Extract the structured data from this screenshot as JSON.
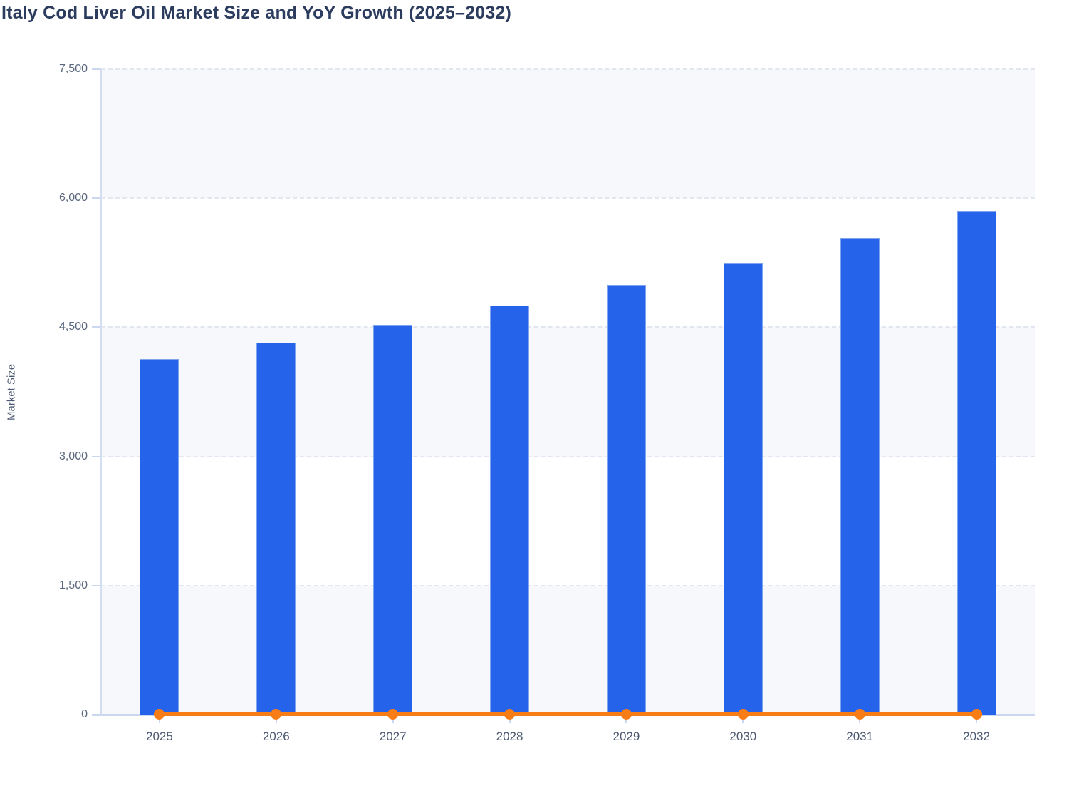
{
  "chart_data": {
    "type": "bar",
    "title": "Italy Cod Liver Oil Market Size and YoY Growth (2025–2032)",
    "xlabel": "",
    "ylabel": "Market Size",
    "categories": [
      "2025",
      "2026",
      "2027",
      "2028",
      "2029",
      "2030",
      "2031",
      "2032"
    ],
    "series": [
      {
        "name": "Market Size",
        "type": "bar",
        "color": "#2563eb",
        "values": [
          4130,
          4320,
          4530,
          4750,
          4990,
          5250,
          5540,
          5850
        ]
      },
      {
        "name": "YoY Growth",
        "type": "line",
        "color": "#f97d16",
        "plotted_values": [
          0,
          0,
          0,
          0,
          0,
          0,
          0,
          0
        ],
        "note": "rendered as a flat orange line with circular markers along the zero baseline; numeric values not labeled on chart"
      }
    ],
    "ylim": [
      0,
      7500
    ],
    "yticks": [
      0,
      1500,
      3000,
      4500,
      6000,
      7500
    ],
    "ytick_labels": [
      "0",
      "1,500",
      "3,000",
      "4,500",
      "6,000",
      "7,500"
    ],
    "grid": "horizontal dashed gridlines at each y tick",
    "plot_bands": "alternating light-gray / white horizontal zebra bands (#f7f8fb)",
    "legend": "none"
  }
}
